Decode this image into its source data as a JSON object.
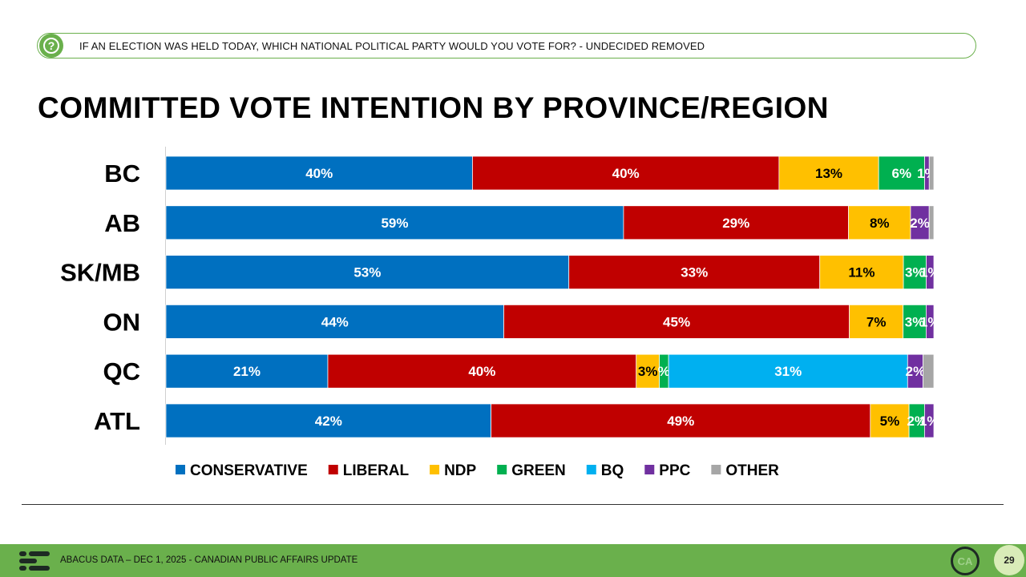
{
  "question": {
    "text": "IF AN ELECTION WAS HELD TODAY, WHICH NATIONAL POLITICAL PARTY WOULD YOU VOTE FOR? - UNDECIDED REMOVED",
    "icon": "question-icon"
  },
  "title": "COMMITTED VOTE INTENTION BY PROVINCE/REGION",
  "chart_data": {
    "type": "bar",
    "orientation": "horizontal",
    "stacked": true,
    "title": "COMMITTED VOTE INTENTION BY PROVINCE/REGION",
    "categories": [
      "BC",
      "AB",
      "SK/MB",
      "ON",
      "QC",
      "ATL"
    ],
    "series": [
      {
        "name": "CONSERVATIVE",
        "color": "#0070c0",
        "values": [
          40,
          59,
          53,
          44,
          21,
          42
        ],
        "labels": [
          "40%",
          "59%",
          "53%",
          "44%",
          "21%",
          "42%"
        ],
        "label_color": "#ffffff"
      },
      {
        "name": "LIBERAL",
        "color": "#c00000",
        "values": [
          40,
          29,
          33,
          45,
          40,
          49
        ],
        "labels": [
          "40%",
          "29%",
          "33%",
          "45%",
          "40%",
          "49%"
        ],
        "label_color": "#ffffff"
      },
      {
        "name": "NDP",
        "color": "#ffc000",
        "values": [
          13,
          8,
          11,
          7,
          3,
          5
        ],
        "labels": [
          "13%",
          "8%",
          "11%",
          "7%",
          "3%",
          "5%"
        ],
        "label_color": "#000000"
      },
      {
        "name": "GREEN",
        "color": "#00b050",
        "values": [
          6,
          0,
          3,
          3,
          1.2,
          2
        ],
        "labels": [
          "6%",
          "",
          "3%",
          "3%",
          "%",
          "2%"
        ],
        "label_color": "#ffffff"
      },
      {
        "name": "BQ",
        "color": "#00b0f0",
        "values": [
          0,
          0,
          0,
          0,
          31,
          0
        ],
        "labels": [
          "",
          "",
          "",
          "",
          "31%",
          ""
        ],
        "label_color": "#ffffff"
      },
      {
        "name": "PPC",
        "color": "#7030a0",
        "values": [
          0.6,
          2.4,
          1,
          1,
          2,
          1.2
        ],
        "labels": [
          "1%",
          "2%",
          "1%",
          "1%",
          "2%",
          "1%"
        ],
        "label_color": "#ffffff"
      },
      {
        "name": "OTHER",
        "color": "#a6a6a6",
        "values": [
          0.6,
          0.6,
          0,
          0,
          1.4,
          0
        ],
        "labels": [
          "",
          "",
          "",
          "",
          "",
          ""
        ],
        "label_color": "#ffffff"
      }
    ],
    "xlim": [
      0,
      100
    ],
    "legend_position": "bottom",
    "grid": false
  },
  "footer": {
    "text": "ABACUS DATA – DEC 1, 2025 - CANADIAN PUBLIC AFFAIRS UPDATE",
    "badge": "CA",
    "page_number": "29"
  }
}
